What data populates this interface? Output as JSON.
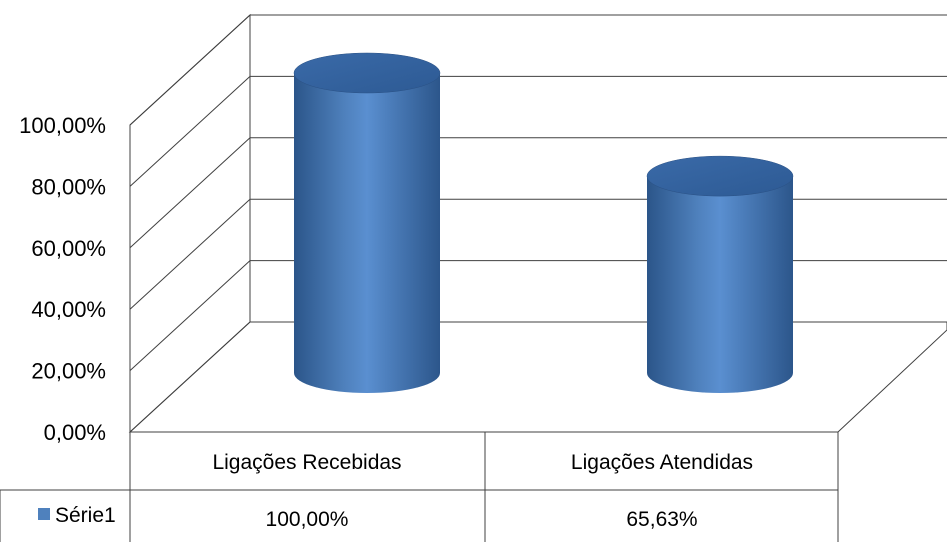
{
  "chart_data": {
    "type": "bar",
    "style": "3d-cylinder",
    "categories": [
      "Ligações Recebidas",
      "Ligações Atendidas"
    ],
    "series": [
      {
        "name": "Série1",
        "values": [
          100.0,
          65.63
        ],
        "color": "#4f81bd"
      }
    ],
    "ylim": [
      0,
      100
    ],
    "yticks": [
      "0,00%",
      "20,00%",
      "40,00%",
      "60,00%",
      "80,00%",
      "100,00%"
    ],
    "data_table": {
      "values": [
        "100,00%",
        "65,63%"
      ]
    },
    "grid": true,
    "legend": "data-table-left"
  }
}
